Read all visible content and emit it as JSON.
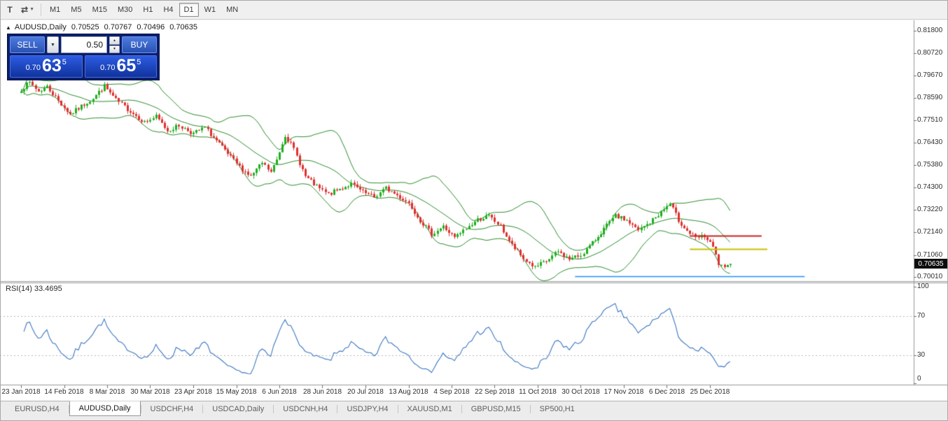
{
  "toolbar": {
    "icons": [
      {
        "name": "text-tool",
        "glyph": "T",
        "caret": false
      },
      {
        "name": "chart-tools-dropdown",
        "glyph": "⇄",
        "caret": true
      }
    ],
    "timeframes": [
      "M1",
      "M5",
      "M15",
      "M30",
      "H1",
      "H4",
      "D1",
      "W1",
      "MN"
    ],
    "active_timeframe": "D1"
  },
  "chart": {
    "marker": "▲",
    "symbol_label": "AUDUSD,Daily",
    "ohlc": {
      "open": "0.70525",
      "high": "0.70767",
      "low": "0.70496",
      "close": "0.70635"
    },
    "price_scale": [
      "0.81800",
      "0.80720",
      "0.79670",
      "0.78590",
      "0.77510",
      "0.76430",
      "0.75380",
      "0.74300",
      "0.73220",
      "0.72140",
      "0.71060",
      "0.70010"
    ],
    "current_price": "0.70635"
  },
  "trade_panel": {
    "sell_label": "SELL",
    "buy_label": "BUY",
    "volume": "0.50",
    "caret": "▼",
    "spin_up": "▲",
    "spin_down": "▼",
    "sell_price": {
      "prefix": "0.70",
      "big": "63",
      "sup": "5"
    },
    "buy_price": {
      "prefix": "0.70",
      "big": "65",
      "sup": "5"
    }
  },
  "rsi": {
    "label": "RSI(14) 33.4695",
    "scale": [
      "100",
      "70",
      "30",
      "0"
    ],
    "levels": [
      70,
      30
    ]
  },
  "time_axis": {
    "labels": [
      "23 Jan 2018",
      "14 Feb 2018",
      "8 Mar 2018",
      "30 Mar 2018",
      "23 Apr 2018",
      "15 May 2018",
      "6 Jun 2018",
      "28 Jun 2018",
      "20 Jul 2018",
      "13 Aug 2018",
      "4 Sep 2018",
      "22 Sep 2018",
      "11 Oct 2018",
      "30 Oct 2018",
      "17 Nov 2018",
      "6 Dec 2018",
      "25 Dec 2018"
    ]
  },
  "tabs": {
    "items": [
      "EURUSD,H4",
      "AUDUSD,Daily",
      "USDCHF,H4",
      "USDCAD,Daily",
      "USDCNH,H4",
      "USDJPY,H4",
      "XAUUSD,M1",
      "GBPUSD,M15",
      "SP500,H1"
    ],
    "active": "AUDUSD,Daily"
  },
  "chart_data": {
    "type": "candlestick",
    "symbol": "AUDUSD",
    "timeframe": "Daily",
    "indicators": {
      "bands": "Bollinger Bands (20,2)",
      "rsi": "RSI(14)",
      "rsi_value": 33.4695
    },
    "price_top": 0.818,
    "price_bottom": 0.7001,
    "candle_count": 248,
    "last_close": 0.70635,
    "seed": 7,
    "noise": 0.0011,
    "wick": 0.0016,
    "bollinger": {
      "period": 20,
      "dev": 2
    },
    "rsi_period": 14,
    "tick_indices": [
      0,
      15,
      30,
      45,
      60,
      75,
      90,
      105,
      120,
      135,
      150,
      165,
      180,
      195,
      210,
      225,
      240
    ],
    "anchors": [
      [
        0,
        0.79
      ],
      [
        3,
        0.7932
      ],
      [
        6,
        0.789
      ],
      [
        9,
        0.7912
      ],
      [
        13,
        0.7845
      ],
      [
        17,
        0.778
      ],
      [
        21,
        0.7818
      ],
      [
        25,
        0.7858
      ],
      [
        29,
        0.7915
      ],
      [
        33,
        0.7848
      ],
      [
        38,
        0.7795
      ],
      [
        43,
        0.7742
      ],
      [
        47,
        0.7768
      ],
      [
        51,
        0.7702
      ],
      [
        55,
        0.7726
      ],
      [
        60,
        0.7688
      ],
      [
        64,
        0.7716
      ],
      [
        68,
        0.7652
      ],
      [
        72,
        0.7588
      ],
      [
        76,
        0.7528
      ],
      [
        80,
        0.7482
      ],
      [
        84,
        0.7546
      ],
      [
        87,
        0.7502
      ],
      [
        89,
        0.7562
      ],
      [
        92,
        0.7682
      ],
      [
        95,
        0.7612
      ],
      [
        99,
        0.7482
      ],
      [
        103,
        0.7432
      ],
      [
        107,
        0.7396
      ],
      [
        111,
        0.7422
      ],
      [
        115,
        0.7446
      ],
      [
        119,
        0.7406
      ],
      [
        123,
        0.7382
      ],
      [
        127,
        0.7426
      ],
      [
        131,
        0.7392
      ],
      [
        135,
        0.7356
      ],
      [
        139,
        0.7272
      ],
      [
        143,
        0.7206
      ],
      [
        147,
        0.7242
      ],
      [
        151,
        0.7188
      ],
      [
        155,
        0.7232
      ],
      [
        159,
        0.7276
      ],
      [
        163,
        0.7292
      ],
      [
        167,
        0.7242
      ],
      [
        171,
        0.7152
      ],
      [
        175,
        0.7088
      ],
      [
        179,
        0.7046
      ],
      [
        183,
        0.7076
      ],
      [
        187,
        0.7122
      ],
      [
        191,
        0.7086
      ],
      [
        195,
        0.7106
      ],
      [
        199,
        0.7162
      ],
      [
        203,
        0.7232
      ],
      [
        207,
        0.7292
      ],
      [
        211,
        0.7272
      ],
      [
        215,
        0.7222
      ],
      [
        219,
        0.7262
      ],
      [
        223,
        0.7312
      ],
      [
        226,
        0.7352
      ],
      [
        229,
        0.7272
      ],
      [
        232,
        0.7222
      ],
      [
        235,
        0.7186
      ],
      [
        238,
        0.7196
      ],
      [
        241,
        0.7142
      ],
      [
        243,
        0.7062
      ],
      [
        245,
        0.7038
      ],
      [
        247,
        0.70635
      ]
    ],
    "levels": [
      {
        "name": "resistance-line-red",
        "color": "#cc2222",
        "price": 0.72,
        "from": 233,
        "to": 258,
        "width": 2
      },
      {
        "name": "level-line-yellow",
        "color": "#c4c400",
        "price": 0.7135,
        "from": 233,
        "to": 260,
        "width": 2
      },
      {
        "name": "support-line-blue",
        "color": "#1e90ff",
        "price": 0.7004,
        "from": 193,
        "to": 273,
        "width": 1.5
      }
    ],
    "colors": {
      "up": "#1faf1f",
      "down": "#df3030",
      "bollinger": "#2a8c2a",
      "rsi": "#3a76c0",
      "rsi_level": "#b8b8b8"
    }
  }
}
